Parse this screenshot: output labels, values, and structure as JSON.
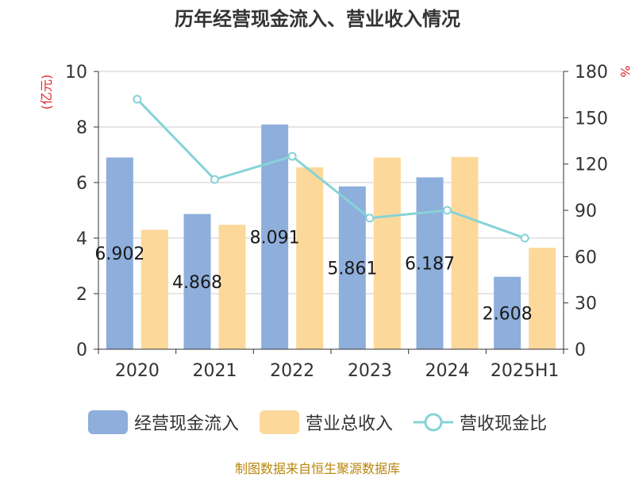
{
  "chart_data": {
    "type": "bar",
    "title": "历年经营现金流入、营业收入情况",
    "categories": [
      "2020",
      "2021",
      "2022",
      "2023",
      "2024",
      "2025H1"
    ],
    "y_left_unit": "(亿元)",
    "y_right_unit": "%",
    "ylim_left": [
      0,
      10
    ],
    "ylim_right": [
      0,
      180
    ],
    "yticks_left": [
      "0",
      "2",
      "4",
      "6",
      "8",
      "10"
    ],
    "yticks_right": [
      "0",
      "30",
      "60",
      "90",
      "120",
      "150",
      "180"
    ],
    "grid": true,
    "legend_position": "bottom",
    "series": [
      {
        "name": "经营现金流入",
        "type": "bar",
        "axis": "left",
        "color": "#8eaedb",
        "values": [
          6.902,
          4.868,
          8.091,
          5.861,
          6.187,
          2.608
        ],
        "labels": [
          "6.902",
          "4.868",
          "8.091",
          "5.861",
          "6.187",
          "2.608"
        ]
      },
      {
        "name": "营业总收入",
        "type": "bar",
        "axis": "left",
        "color": "#fdd89b",
        "values": [
          4.3,
          4.48,
          6.55,
          6.9,
          6.92,
          3.65
        ]
      },
      {
        "name": "营收现金比",
        "type": "line",
        "axis": "right",
        "color": "#86d3d8",
        "values": [
          162,
          110,
          125,
          85,
          90,
          72
        ]
      }
    ]
  },
  "source_text": "制图数据来自恒生聚源数据库"
}
